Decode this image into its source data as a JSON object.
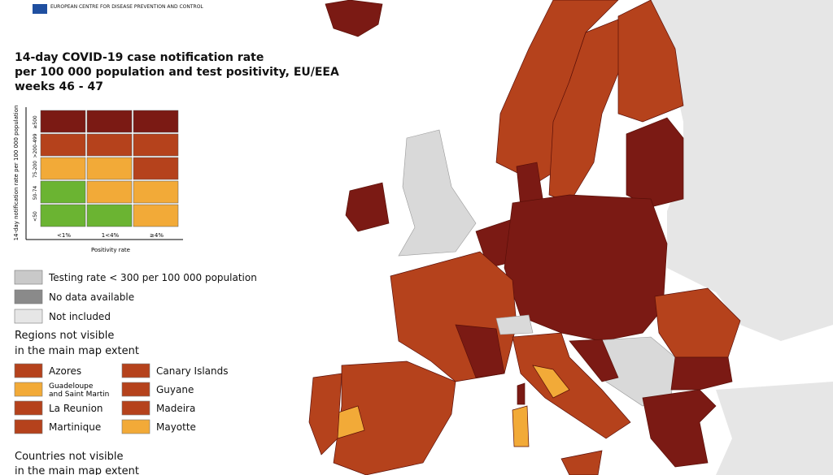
{
  "logo_text": "EUROPEAN CENTRE FOR DISEASE PREVENTION AND CONTROL",
  "title": [
    "14-day COVID-19 case notification rate",
    "per 100 000 population and test positivity, EU/EEA",
    "weeks 46 - 47"
  ],
  "matrix": {
    "y_label": "14-day notification rate per 100 000 population",
    "x_label": "Positivity rate",
    "rows": [
      "≥500",
      ">200-499",
      "75-200",
      "50-74",
      "<50"
    ],
    "columns": [
      "<1%",
      "1<4%",
      "≥4%"
    ],
    "colors": [
      [
        "#7b1a14",
        "#7b1a14",
        "#7b1a14"
      ],
      [
        "#b5421c",
        "#b5421c",
        "#b5421c"
      ],
      [
        "#f2aa38",
        "#f2aa38",
        "#b5421c"
      ],
      [
        "#6bb432",
        "#f2aa38",
        "#f2aa38"
      ],
      [
        "#6bb432",
        "#6bb432",
        "#f2aa38"
      ]
    ]
  },
  "legend": [
    {
      "label": "Testing rate < 300 per 100 000 population",
      "color": "#c9c9c9"
    },
    {
      "label": "No data available",
      "color": "#8a8a8a"
    },
    {
      "label": "Not included",
      "color": "#e6e6e6"
    }
  ],
  "regions_heading": [
    "Regions not visible",
    "in the main map extent"
  ],
  "regions": [
    {
      "label": "Azores",
      "color": "#b5421c"
    },
    {
      "label": "Canary Islands",
      "color": "#b5421c"
    },
    {
      "label": "Guadeloupe and Saint Martin",
      "color": "#f2aa38"
    },
    {
      "label": "Guyane",
      "color": "#b5421c"
    },
    {
      "label": "La Reunion",
      "color": "#b5421c"
    },
    {
      "label": "Madeira",
      "color": "#b5421c"
    },
    {
      "label": "Martinique",
      "color": "#b5421c"
    },
    {
      "label": "Mayotte",
      "color": "#f2aa38"
    }
  ],
  "countries_heading": [
    "Countries not visible",
    "in the main map extent"
  ]
}
